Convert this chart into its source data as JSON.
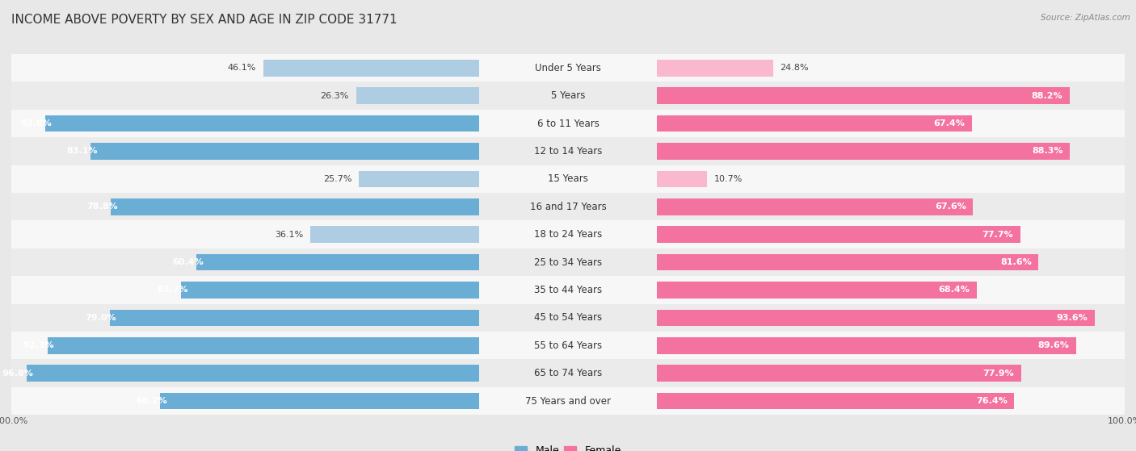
{
  "title": "INCOME ABOVE POVERTY BY SEX AND AGE IN ZIP CODE 31771",
  "source": "Source: ZipAtlas.com",
  "categories": [
    "Under 5 Years",
    "5 Years",
    "6 to 11 Years",
    "12 to 14 Years",
    "15 Years",
    "16 and 17 Years",
    "18 to 24 Years",
    "25 to 34 Years",
    "35 to 44 Years",
    "45 to 54 Years",
    "55 to 64 Years",
    "65 to 74 Years",
    "75 Years and over"
  ],
  "male_values": [
    46.1,
    26.3,
    92.8,
    83.1,
    25.7,
    78.8,
    36.1,
    60.4,
    63.7,
    79.0,
    92.3,
    96.8,
    68.2
  ],
  "female_values": [
    24.8,
    88.2,
    67.4,
    88.3,
    10.7,
    67.6,
    77.7,
    81.6,
    68.4,
    93.6,
    89.6,
    77.9,
    76.4
  ],
  "male_color_dark": "#6aaed6",
  "male_color_light": "#aecde3",
  "female_color_dark": "#f472a0",
  "female_color_light": "#f9b8ce",
  "bg_color": "#e8e8e8",
  "row_bg_light": "#f7f7f7",
  "row_bg_dark": "#ebebeb",
  "title_fontsize": 11,
  "cat_fontsize": 8.5,
  "value_fontsize": 8,
  "legend_fontsize": 9,
  "axis_fontsize": 8,
  "threshold": 50
}
